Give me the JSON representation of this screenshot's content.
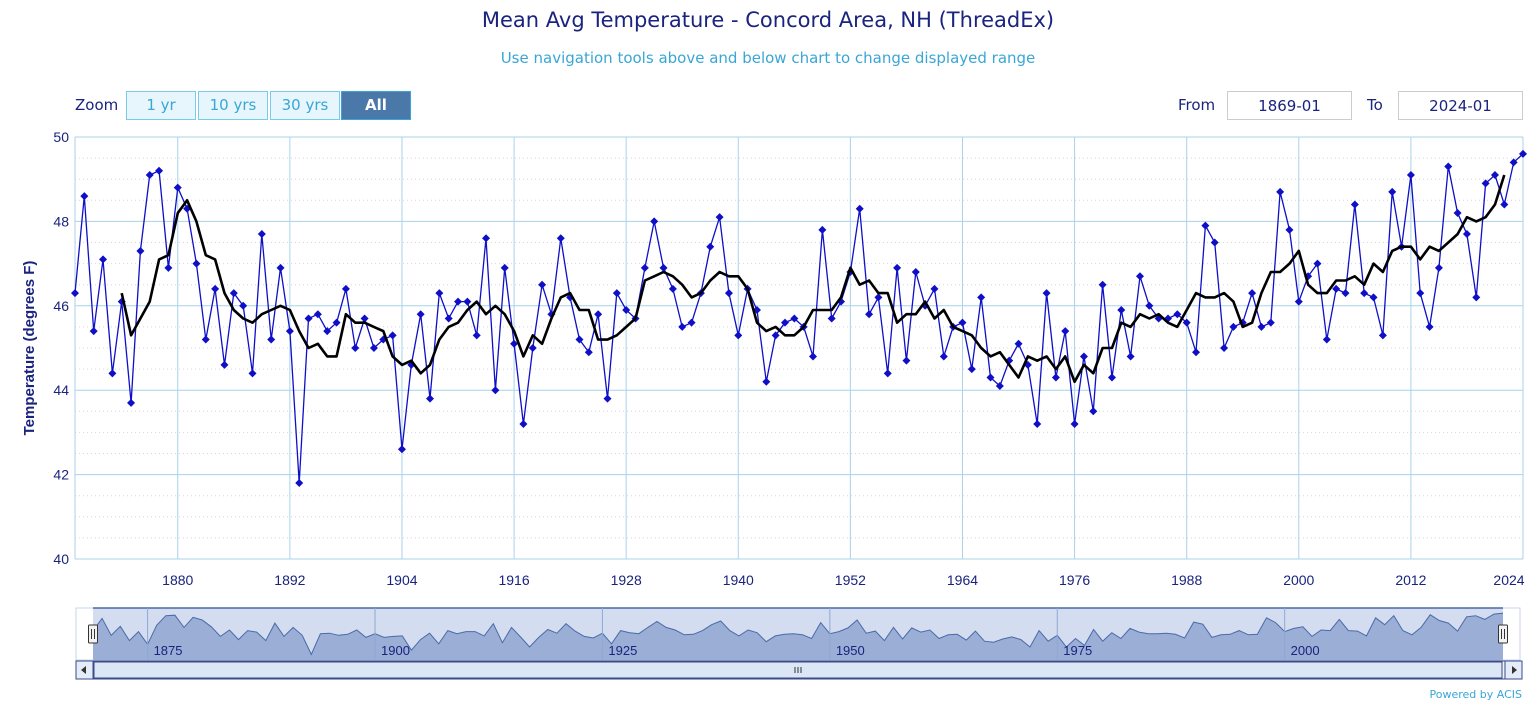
{
  "header": {
    "title": "Mean Avg Temperature - Concord Area, NH (ThreadEx)",
    "subtitle": "Use navigation tools above and below chart to change displayed range"
  },
  "range_selector": {
    "zoom_label": "Zoom",
    "buttons": [
      "1 yr",
      "10 yrs",
      "30 yrs",
      "All"
    ],
    "active_button": "All",
    "from_label": "From",
    "from_value": "1869-01",
    "to_label": "To",
    "to_value": "2024-01"
  },
  "credit": "Powered by ACIS",
  "colors": {
    "series_annual": "#0f0fc8",
    "series_smoothed": "#000000",
    "gridline": "#a8d3ea",
    "axis_text": "#1a237e",
    "navigator_fill": "#9aaed6",
    "navigator_line": "#4a6aa8"
  },
  "chart_data": {
    "type": "line",
    "title": "Mean Avg Temperature - Concord Area, NH (ThreadEx)",
    "subtitle": "Use navigation tools above and below chart to change displayed range",
    "ylabel": "Temperature (degrees F)",
    "xlabel": "",
    "ylim": [
      40,
      50
    ],
    "xlim": [
      1869,
      2024
    ],
    "y_ticks": [
      40,
      42,
      44,
      46,
      48,
      50
    ],
    "x_ticks": [
      1880,
      1892,
      1904,
      1916,
      1928,
      1940,
      1952,
      1964,
      1976,
      1988,
      2000,
      2012,
      2024
    ],
    "grid": true,
    "series": [
      {
        "marker": "diamond",
        "x_start": 1869,
        "values": [
          46.3,
          48.6,
          45.4,
          47.1,
          44.4,
          46.1,
          43.7,
          47.3,
          49.1,
          49.2,
          46.9,
          48.8,
          48.3,
          47.0,
          45.2,
          46.4,
          44.6,
          46.3,
          46.0,
          44.4,
          47.7,
          45.2,
          46.9,
          45.4,
          41.8,
          45.7,
          45.8,
          45.4,
          45.6,
          46.4,
          45.0,
          45.7,
          45.0,
          45.2,
          45.3,
          42.6,
          44.6,
          45.8,
          43.8,
          46.3,
          45.7,
          46.1,
          46.1,
          45.3,
          47.6,
          44.0,
          46.9,
          45.1,
          43.2,
          45.0,
          46.5,
          45.8,
          47.6,
          46.2,
          45.2,
          44.9,
          45.8,
          43.8,
          46.3,
          45.9,
          45.7,
          46.9,
          48.0,
          46.9,
          46.4,
          45.5,
          45.6,
          46.3,
          47.4,
          48.1,
          46.3,
          45.3,
          46.4,
          45.9,
          44.2,
          45.3,
          45.6,
          45.7,
          45.5,
          44.8,
          47.8,
          45.7,
          46.1,
          46.8,
          48.3,
          45.8,
          46.2,
          44.4,
          46.9,
          44.7,
          46.8,
          46.0,
          46.4,
          44.8,
          45.5,
          45.6,
          44.5,
          46.2,
          44.3,
          44.1,
          44.7,
          45.1,
          44.6,
          43.2,
          46.3,
          44.3,
          45.4,
          43.2,
          44.8,
          43.5,
          46.5,
          44.3,
          45.9,
          44.8,
          46.7,
          46.0,
          45.7,
          45.7,
          45.8,
          45.6,
          44.9,
          47.9,
          47.5,
          45.0,
          45.5,
          45.6,
          46.3,
          45.5,
          45.6,
          48.7,
          47.8,
          46.1,
          46.7,
          47.0,
          45.2,
          46.4,
          46.3,
          48.4,
          46.3,
          46.2,
          45.3,
          48.7,
          47.4,
          49.1,
          46.3,
          45.5,
          46.9,
          49.3,
          48.2,
          47.7,
          46.2,
          48.9,
          49.1,
          48.4,
          49.4,
          49.6
        ]
      },
      {
        "marker": "none",
        "x_start": 1874,
        "values": [
          46.3,
          45.3,
          45.7,
          46.1,
          47.1,
          47.2,
          48.2,
          48.5,
          48.0,
          47.2,
          47.1,
          46.3,
          45.9,
          45.7,
          45.6,
          45.8,
          45.9,
          46.0,
          45.9,
          45.4,
          45.0,
          45.1,
          44.8,
          44.8,
          45.8,
          45.6,
          45.6,
          45.5,
          45.4,
          44.8,
          44.6,
          44.7,
          44.4,
          44.6,
          45.2,
          45.5,
          45.6,
          45.9,
          46.1,
          45.8,
          46.0,
          45.8,
          45.4,
          44.8,
          45.3,
          45.1,
          45.7,
          46.2,
          46.3,
          45.9,
          45.9,
          45.2,
          45.2,
          45.3,
          45.5,
          45.7,
          46.6,
          46.7,
          46.8,
          46.7,
          46.5,
          46.2,
          46.3,
          46.6,
          46.8,
          46.7,
          46.7,
          46.4,
          45.6,
          45.4,
          45.5,
          45.3,
          45.3,
          45.5,
          45.9,
          45.9,
          45.9,
          46.2,
          46.9,
          46.5,
          46.6,
          46.3,
          46.3,
          45.6,
          45.8,
          45.8,
          46.1,
          45.7,
          45.9,
          45.5,
          45.4,
          45.3,
          45.0,
          44.8,
          44.9,
          44.6,
          44.3,
          44.8,
          44.7,
          44.8,
          44.5,
          44.8,
          44.2,
          44.6,
          44.4,
          45.0,
          45.0,
          45.6,
          45.5,
          45.8,
          45.7,
          45.8,
          45.6,
          45.5,
          45.9,
          46.3,
          46.2,
          46.2,
          46.3,
          46.1,
          45.5,
          45.6,
          46.3,
          46.8,
          46.8,
          47.0,
          47.3,
          46.5,
          46.3,
          46.3,
          46.6,
          46.6,
          46.7,
          46.5,
          47.0,
          46.8,
          47.3,
          47.4,
          47.4,
          47.1,
          47.4,
          47.3,
          47.5,
          47.7,
          48.1,
          48.0,
          48.1,
          48.4,
          49.1
        ]
      }
    ],
    "navigator": {
      "x_ticks": [
        1875,
        1900,
        1925,
        1950,
        1975,
        2000
      ]
    }
  }
}
